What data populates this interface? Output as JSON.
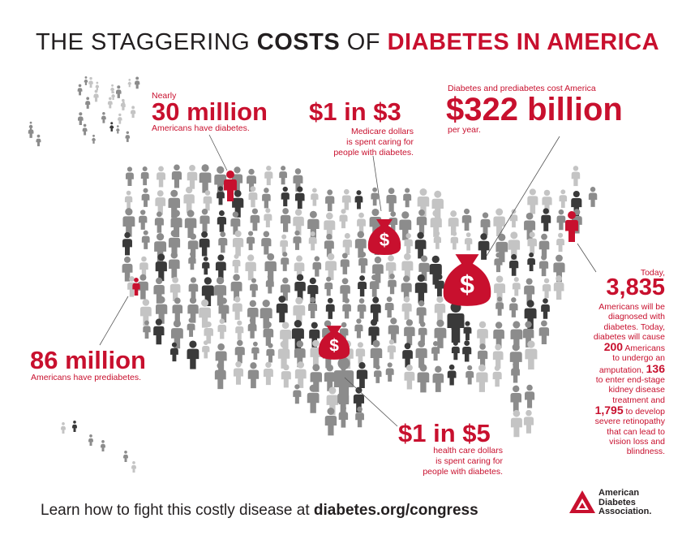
{
  "title": {
    "pre": "THE STAGGERING ",
    "bold": "COSTS",
    "mid": " OF ",
    "red": "DIABETES IN AMERICA"
  },
  "stat_30m": {
    "pre": "Nearly",
    "big": "30 million",
    "sub": "Americans have diabetes."
  },
  "stat_1in3": {
    "big": "$1 in $3",
    "sub1": "Medicare dollars",
    "sub2": "is spent caring for",
    "sub3": "people with diabetes."
  },
  "stat_322b": {
    "pre": "Diabetes and prediabetes cost America",
    "big": "$322 billion",
    "sub": "per year."
  },
  "stat_86m": {
    "big": "86 million",
    "sub": "Americans have prediabetes."
  },
  "stat_1in5": {
    "big": "$1 in $5",
    "sub1": "health care dollars",
    "sub2": "is spent caring for",
    "sub3": "people with diabetes."
  },
  "today": {
    "pre": "Today,",
    "big": "3,835",
    "lines": [
      "Americans will be",
      "diagnosed with",
      "diabetes. Today,",
      "diabetes will cause"
    ],
    "n200": "200",
    "after200": " Americans",
    "lines2": [
      "to undergo an"
    ],
    "amp_pre": "amputation, ",
    "n136": "136",
    "lines3": [
      "to enter end-stage",
      "kidney disease",
      "treatment and"
    ],
    "n1795": "1,795",
    "after1795": " to develop",
    "lines4": [
      "severe retinopathy",
      "that can lead to",
      "vision loss and",
      "blindness."
    ]
  },
  "footer": {
    "pre": "Learn how to fight this costly disease at ",
    "link": "diabetes.org/congress"
  },
  "logo": {
    "line1": "American",
    "line2": "Diabetes",
    "line3": "Association."
  },
  "colors": {
    "red": "#c8102e",
    "dark": "#3a3a3a",
    "mid": "#8c8c8c",
    "light": "#c4c4c4"
  }
}
